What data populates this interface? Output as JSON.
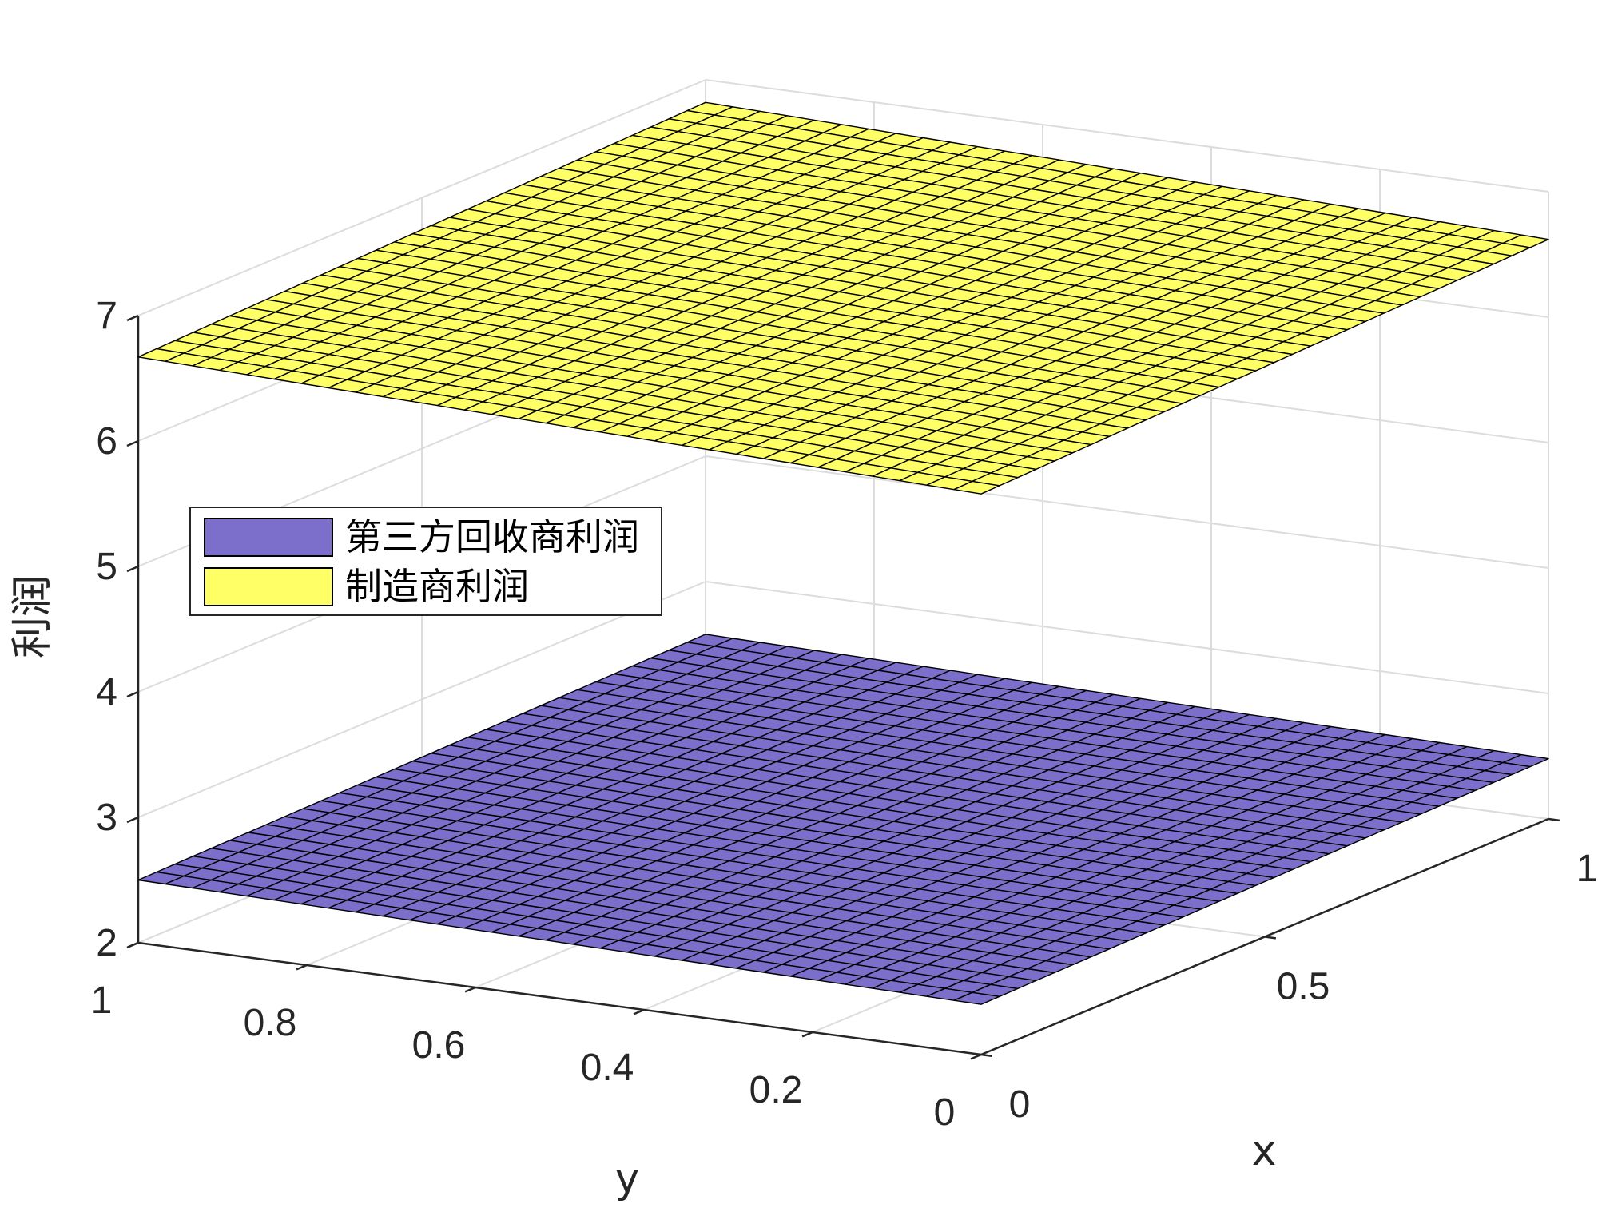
{
  "chart_data": {
    "type": "surface",
    "title": "",
    "xlabel": "x",
    "ylabel": "y",
    "zlabel": "利润",
    "xlim": [
      0,
      1
    ],
    "ylim": [
      0,
      1
    ],
    "zlim": [
      2,
      7
    ],
    "x_ticks": [
      0,
      0.5,
      1
    ],
    "x_tick_labels": [
      "0",
      "0.5",
      "1"
    ],
    "y_ticks": [
      0,
      0.2,
      0.4,
      0.6,
      0.8,
      1
    ],
    "y_tick_labels": [
      "0",
      "0.2",
      "0.4",
      "0.6",
      "0.8",
      "1"
    ],
    "z_ticks": [
      2,
      3,
      4,
      5,
      6,
      7
    ],
    "z_tick_labels": [
      "2",
      "3",
      "4",
      "5",
      "6",
      "7"
    ],
    "grid": true,
    "legend_position": "center-left",
    "grid_resolution": 31,
    "series": [
      {
        "name": "第三方回收商利润",
        "color": "#7b6fcb",
        "z_at_x0_y0": 2.4,
        "z_at_x1_y0": 2.48,
        "z_at_x0_y1": 2.5,
        "z_at_x1_y1": 2.58
      },
      {
        "name": "制造商利润",
        "color": "#ffff66",
        "z_at_x0_y0": 6.47,
        "z_at_x1_y0": 6.62,
        "z_at_x0_y1": 6.67,
        "z_at_x1_y1": 6.82
      }
    ]
  }
}
